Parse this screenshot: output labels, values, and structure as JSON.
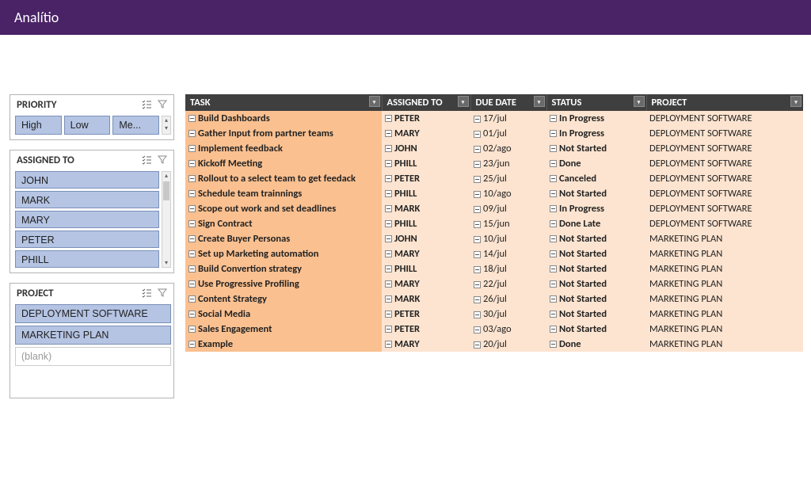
{
  "header": {
    "title": "Analítio"
  },
  "colors": {
    "header_bg": "#4a2366",
    "table_header_bg": "#3f3f3f",
    "task_col_bg": "#fac090",
    "data_col_bg": "#fde4d0",
    "slicer_item_bg": "#b5c4e3",
    "slicer_item_border": "#7a8fb8"
  },
  "slicers": {
    "priority": {
      "title": "PRIORITY",
      "items": [
        "High",
        "Low",
        "Me..."
      ]
    },
    "assigned_to": {
      "title": "ASSIGNED TO",
      "items": [
        "JOHN",
        "MARK",
        "MARY",
        "PETER",
        "PHILL"
      ]
    },
    "project": {
      "title": "PROJECT",
      "items": [
        "DEPLOYMENT SOFTWARE",
        "MARKETING PLAN"
      ],
      "blank_label": "(blank)"
    }
  },
  "table": {
    "columns": [
      "TASK",
      "ASSIGNED TO",
      "DUE DATE",
      "STATUS",
      "PROJECT"
    ],
    "rows": [
      {
        "task": "Build Dashboards",
        "assigned": "PETER",
        "due": "17/jul",
        "status": "In Progress",
        "project": "DEPLOYMENT SOFTWARE"
      },
      {
        "task": "Gather Input from partner teams",
        "assigned": "MARY",
        "due": "01/jul",
        "status": "In Progress",
        "project": "DEPLOYMENT SOFTWARE"
      },
      {
        "task": "Implement feedback",
        "assigned": "JOHN",
        "due": "02/ago",
        "status": "Not Started",
        "project": "DEPLOYMENT SOFTWARE"
      },
      {
        "task": "Kickoff Meeting",
        "assigned": "PHILL",
        "due": "23/jun",
        "status": "Done",
        "project": "DEPLOYMENT SOFTWARE"
      },
      {
        "task": "Rollout to a select team to get feedack",
        "assigned": "PETER",
        "due": "25/jul",
        "status": "Canceled",
        "project": "DEPLOYMENT SOFTWARE"
      },
      {
        "task": "Schedule team trainnings",
        "assigned": "PHILL",
        "due": "10/ago",
        "status": "Not Started",
        "project": "DEPLOYMENT SOFTWARE"
      },
      {
        "task": "Scope out work and set deadlines",
        "assigned": "MARK",
        "due": "09/jul",
        "status": "In Progress",
        "project": "DEPLOYMENT SOFTWARE"
      },
      {
        "task": "Sign Contract",
        "assigned": "PHILL",
        "due": "15/jun",
        "status": "Done Late",
        "project": "DEPLOYMENT SOFTWARE"
      },
      {
        "task": "Create Buyer Personas",
        "assigned": "JOHN",
        "due": "10/jul",
        "status": "Not Started",
        "project": "MARKETING PLAN"
      },
      {
        "task": "Set up Marketing automation",
        "assigned": "MARY",
        "due": "14/jul",
        "status": "Not Started",
        "project": "MARKETING PLAN"
      },
      {
        "task": "Build Convertion strategy",
        "assigned": "PHILL",
        "due": "18/jul",
        "status": "Not Started",
        "project": "MARKETING PLAN"
      },
      {
        "task": "Use Progressive Profiling",
        "assigned": "MARY",
        "due": "22/jul",
        "status": "Not Started",
        "project": "MARKETING PLAN"
      },
      {
        "task": "Content Strategy",
        "assigned": "MARK",
        "due": "26/jul",
        "status": "Not Started",
        "project": "MARKETING PLAN"
      },
      {
        "task": "Social Media",
        "assigned": "PETER",
        "due": "30/jul",
        "status": "Not Started",
        "project": "MARKETING PLAN"
      },
      {
        "task": "Sales Engagement",
        "assigned": "PETER",
        "due": "03/ago",
        "status": "Not Started",
        "project": "MARKETING PLAN"
      },
      {
        "task": "Example",
        "assigned": "MARY",
        "due": "20/jul",
        "status": "Done",
        "project": "MARKETING PLAN"
      }
    ]
  }
}
